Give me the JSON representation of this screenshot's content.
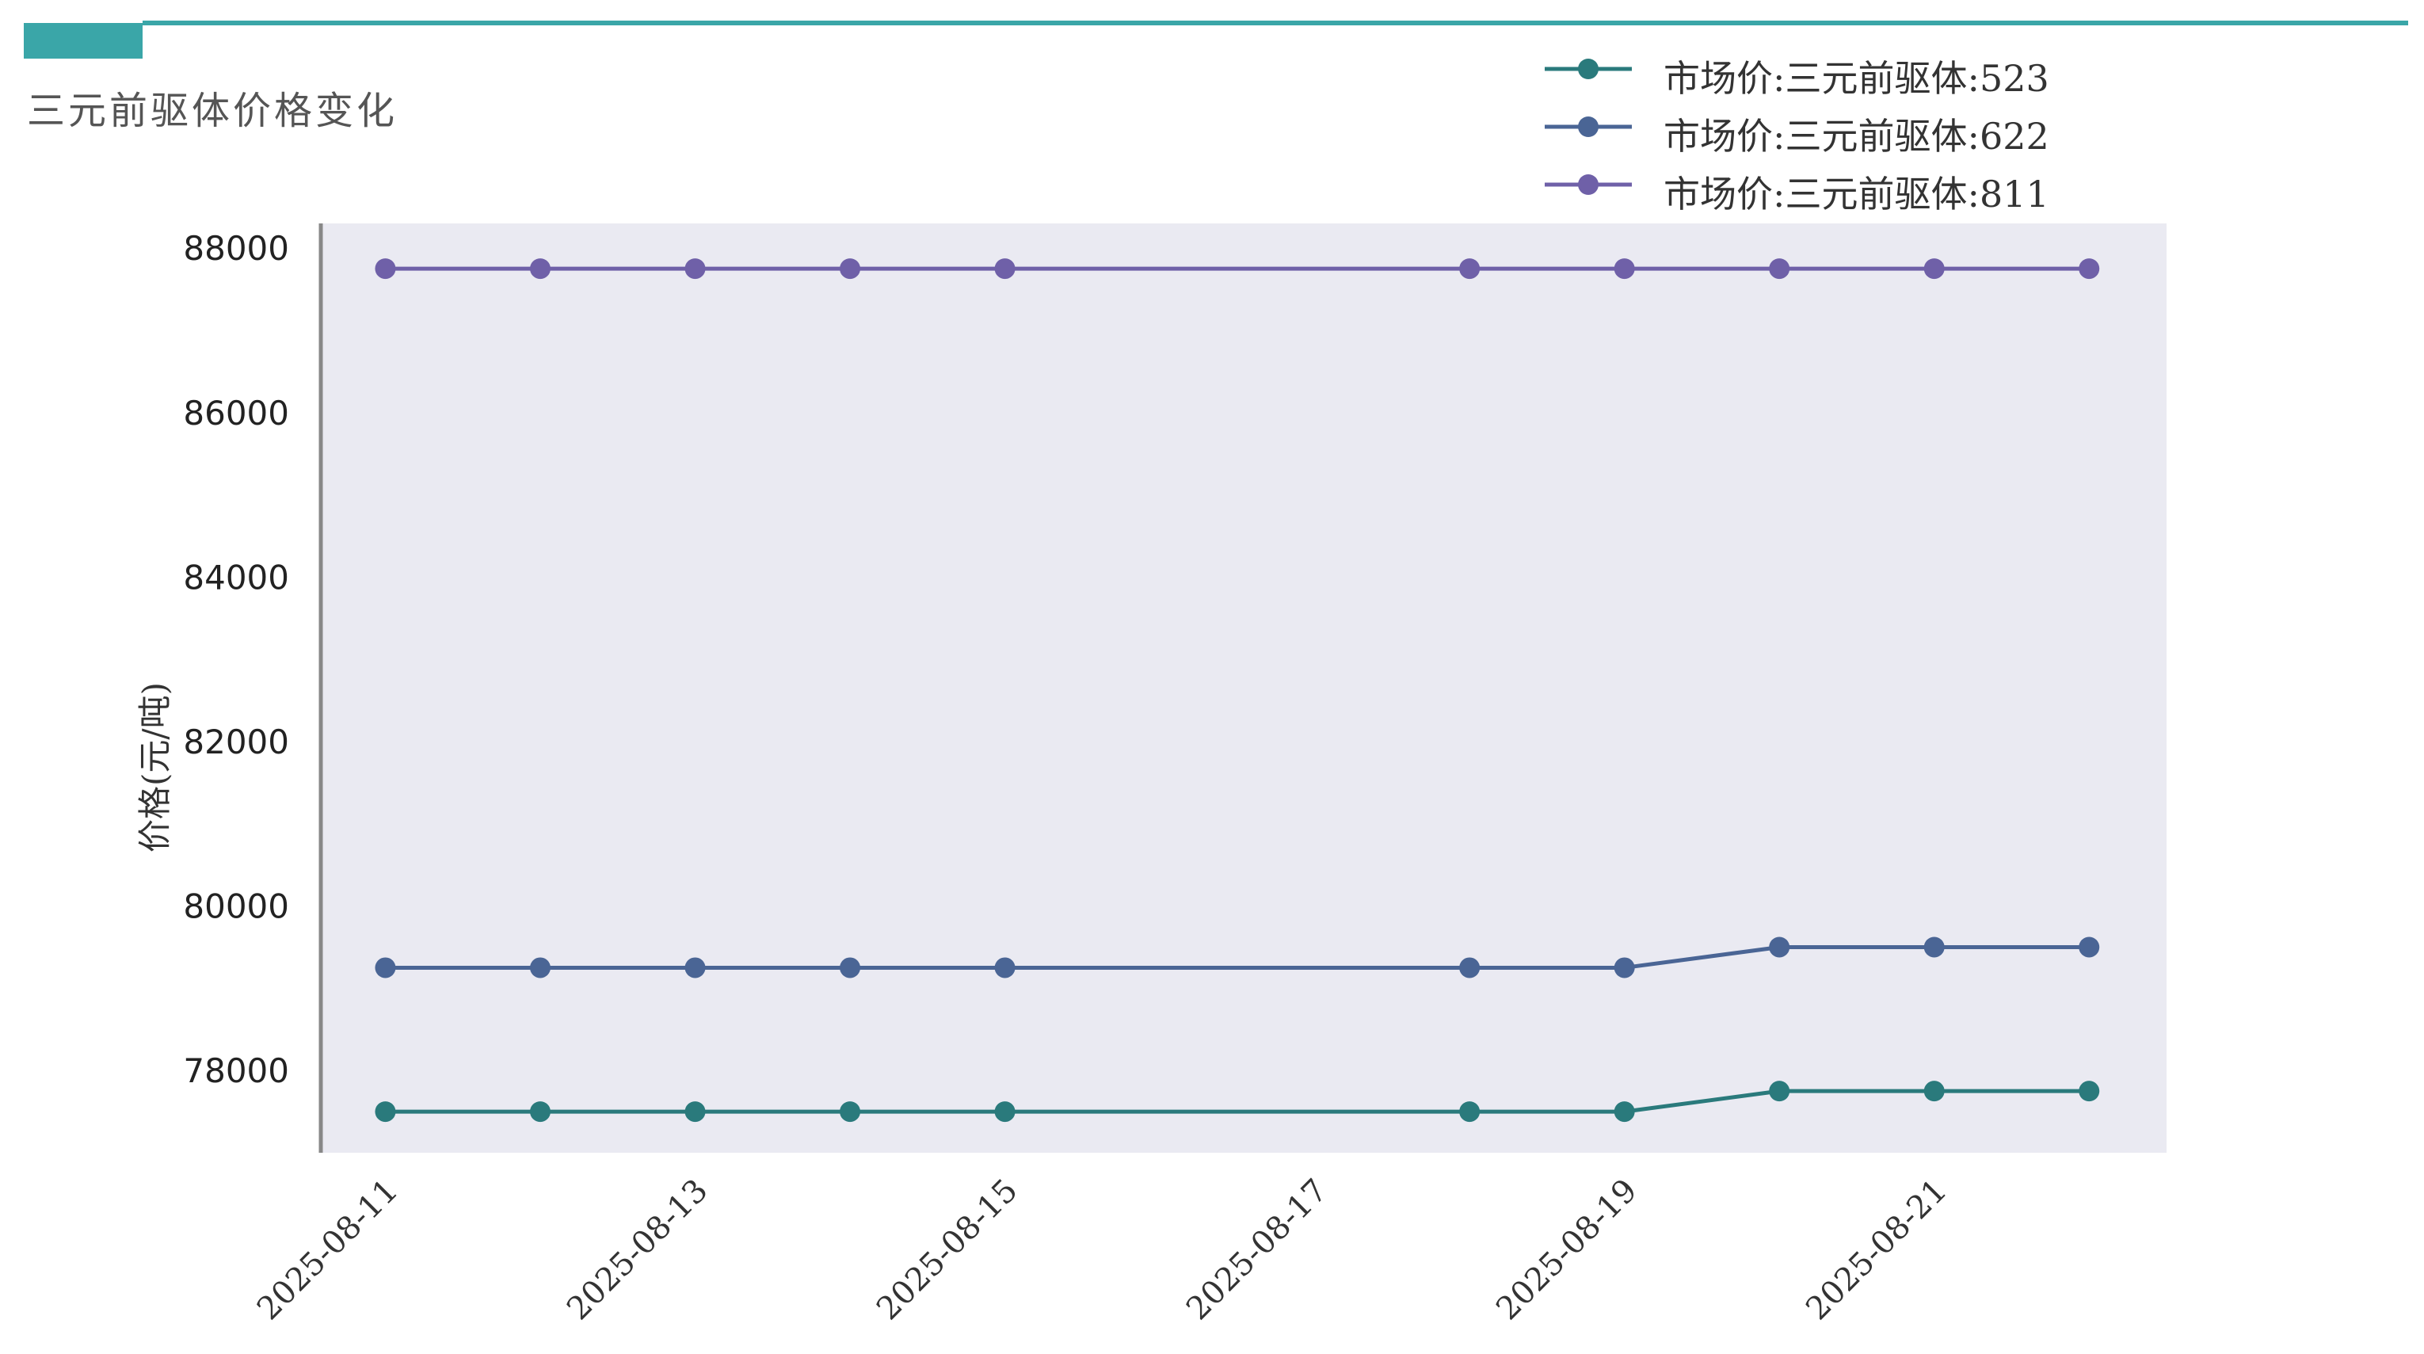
{
  "page": {
    "title": "三元前驱体价格变化"
  },
  "colors": {
    "header_accent": "#3aa6a8",
    "plot_bg": "#eaeaf2",
    "axis": "#888888"
  },
  "chart_data": {
    "type": "line",
    "title": "三元前驱体价格变化",
    "xlabel": "",
    "ylabel": "价格(元/吨)",
    "ylim": [
      77000,
      88300
    ],
    "yticks": [
      78000,
      80000,
      82000,
      84000,
      86000,
      88000
    ],
    "xlim": [
      "2025-08-10T14:00",
      "2025-08-22T12:00"
    ],
    "xticks": [
      "2025-08-11",
      "2025-08-13",
      "2025-08-15",
      "2025-08-17",
      "2025-08-19",
      "2025-08-21"
    ],
    "grid": false,
    "legend_position": "top-right",
    "x": [
      "2025-08-11",
      "2025-08-12",
      "2025-08-13",
      "2025-08-14",
      "2025-08-15",
      "2025-08-18",
      "2025-08-19",
      "2025-08-20",
      "2025-08-21",
      "2025-08-22"
    ],
    "series": [
      {
        "name": "市场价:三元前驱体:523",
        "color": "#2a7a7c",
        "values": [
          77500,
          77500,
          77500,
          77500,
          77500,
          77500,
          77500,
          77750,
          77750,
          77750
        ]
      },
      {
        "name": "市场价:三元前驱体:622",
        "color": "#4a6595",
        "values": [
          79250,
          79250,
          79250,
          79250,
          79250,
          79250,
          79250,
          79500,
          79500,
          79500
        ]
      },
      {
        "name": "市场价:三元前驱体:811",
        "color": "#6f60a8",
        "values": [
          87750,
          87750,
          87750,
          87750,
          87750,
          87750,
          87750,
          87750,
          87750,
          87750
        ]
      }
    ]
  }
}
